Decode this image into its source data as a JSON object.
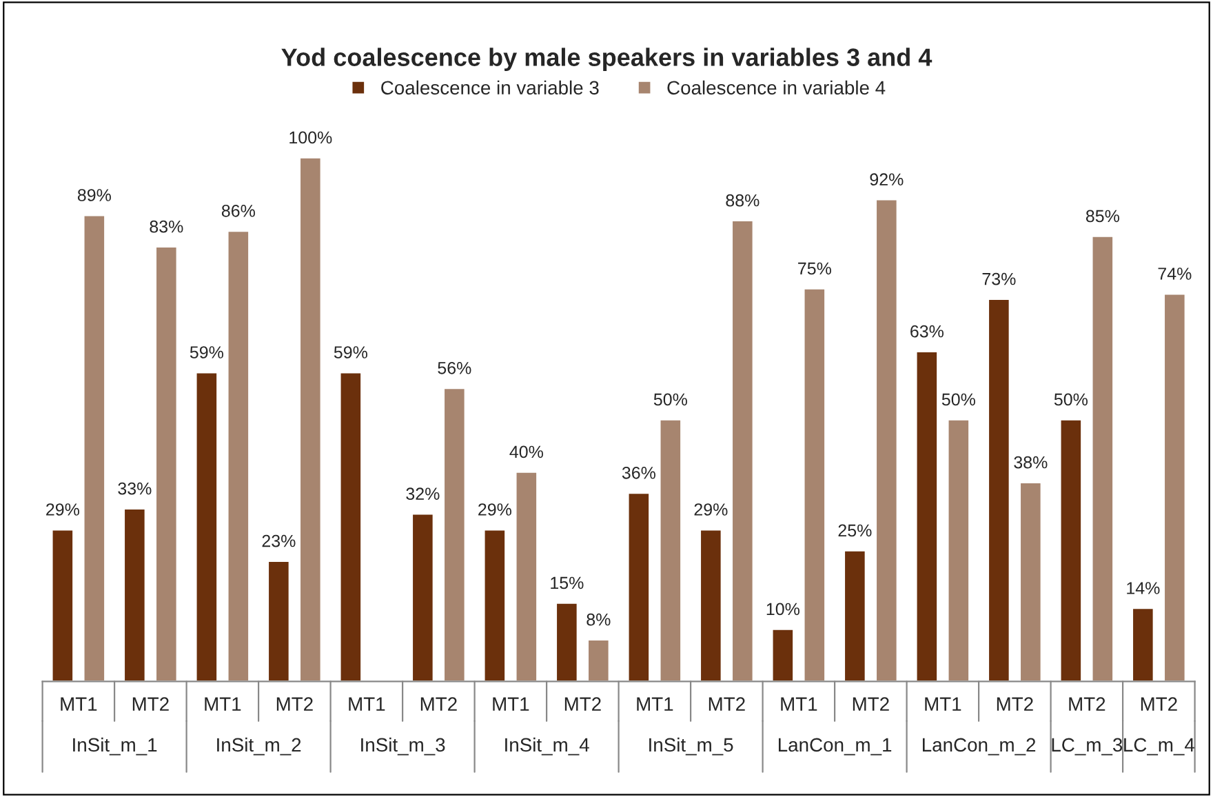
{
  "chart_data": {
    "type": "bar",
    "title": "Yod coalescence by male speakers in variables 3 and 4",
    "categories": [
      "MT1",
      "MT2",
      "MT1",
      "MT2",
      "MT1",
      "MT2",
      "MT1",
      "MT2",
      "MT1",
      "MT2",
      "MT1",
      "MT2",
      "MT1",
      "MT2",
      "MT2",
      "MT2"
    ],
    "series": [
      {
        "name": "Coalescence in variable 3",
        "color": "#6b300c",
        "values": [
          29,
          33,
          59,
          23,
          59,
          32,
          29,
          15,
          36,
          29,
          10,
          25,
          63,
          73,
          50,
          14
        ],
        "value_labels": [
          "29%",
          "33%",
          "59%",
          "23%",
          "59%",
          "32%",
          "29%",
          "15%",
          "36%",
          "29%",
          "10%",
          "25%",
          "63%",
          "73%",
          "50%",
          "14%"
        ]
      },
      {
        "name": "Coalescence in variable 4",
        "color": "#a7856f",
        "values": [
          89,
          83,
          86,
          100,
          null,
          56,
          40,
          8,
          50,
          88,
          75,
          92,
          50,
          38,
          85,
          74
        ],
        "value_labels": [
          "89%",
          "83%",
          "86%",
          "100%",
          null,
          "56%",
          "40%",
          "8%",
          "50%",
          "88%",
          "75%",
          "92%",
          "50%",
          "38%",
          "85%",
          "74%"
        ]
      }
    ],
    "annotations": [
      "InSit_m_1",
      "InSit_m_2",
      "InSit_m_3",
      "InSit_m_4",
      "InSit_m_5",
      "LanCon_m_1",
      "LanCon_m_2",
      "LC_m_3",
      "LC_m_4"
    ],
    "legend": "top",
    "grid": false
  }
}
